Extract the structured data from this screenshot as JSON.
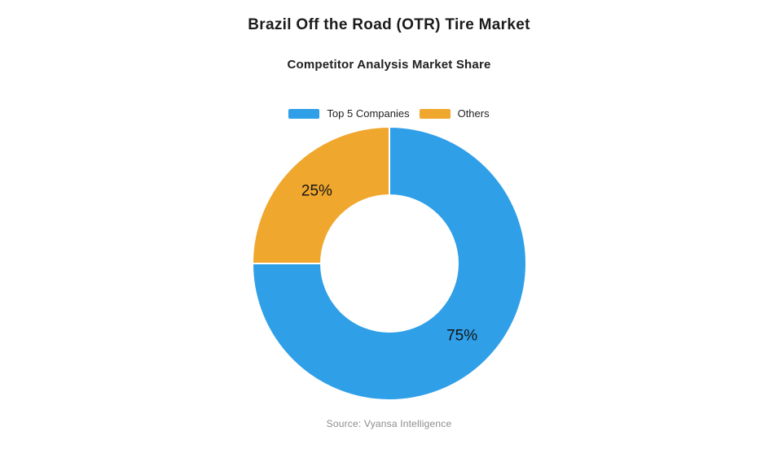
{
  "page": {
    "background": "#ffffff"
  },
  "chart_data": {
    "type": "pie",
    "variant": "donut",
    "title": "Brazil Off the Road (OTR) Tire Market",
    "subtitle": "Competitor Analysis Market Share",
    "categories": [
      "Top 5 Companies",
      "Others"
    ],
    "values": [
      75,
      25
    ],
    "slice_labels": [
      "75%",
      "25%"
    ],
    "colors": [
      "#2F9FE8",
      "#F0A72D"
    ],
    "label_color": "#151515",
    "legend_position": "top",
    "donut_hole_ratio": 0.5,
    "start_angle_deg": 0,
    "direction": "clockwise",
    "source": "Source: Vyansa Intelligence"
  }
}
